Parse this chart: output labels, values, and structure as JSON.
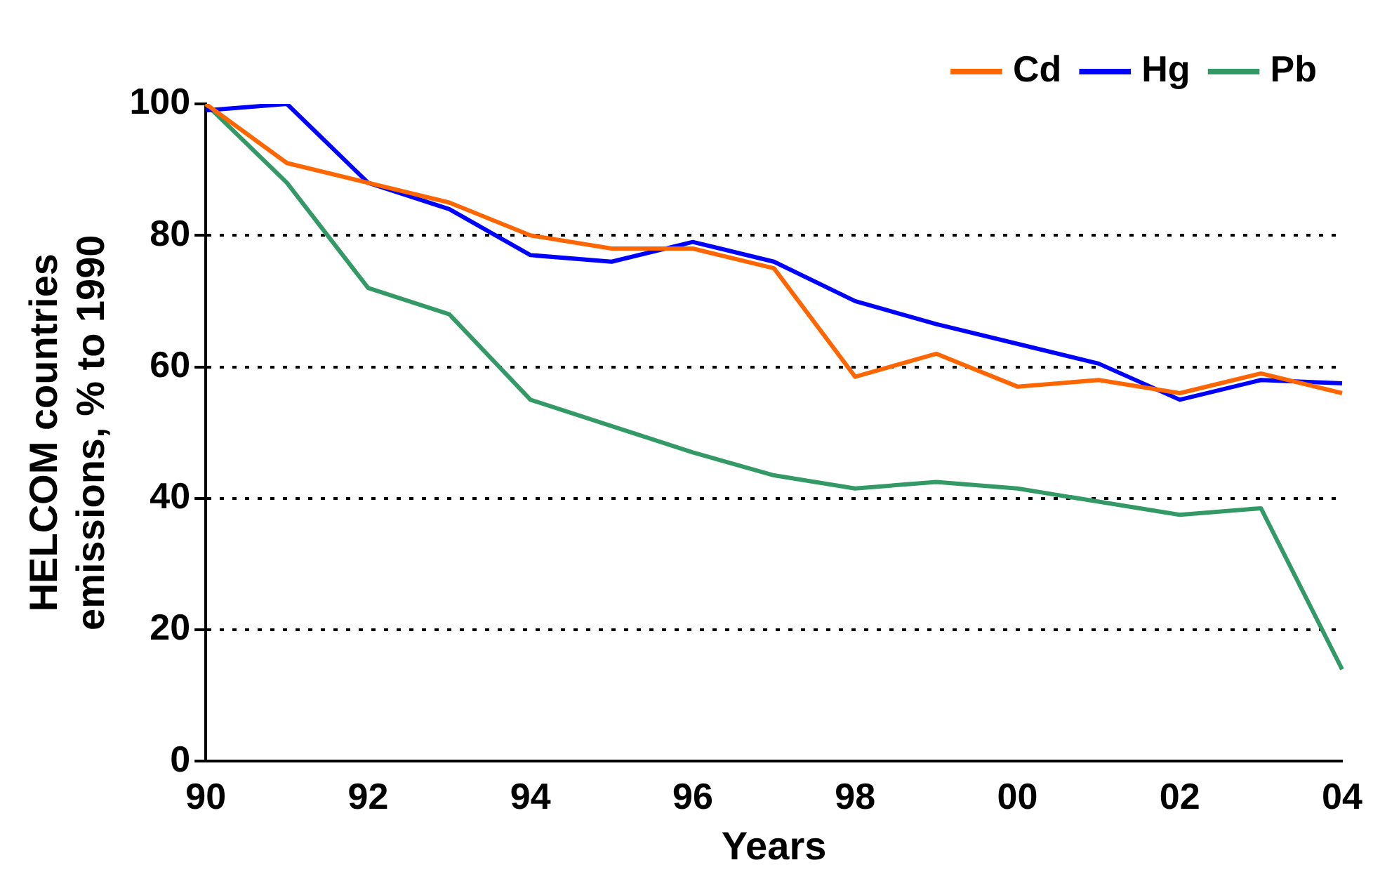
{
  "chart_data": {
    "type": "line",
    "xlabel": "Years",
    "ylabel": "HELCOM countries\nemissions, % to 1990",
    "categories": [
      "90",
      null,
      "92",
      null,
      "94",
      null,
      "96",
      null,
      "98",
      null,
      "00",
      null,
      "02",
      null,
      "04"
    ],
    "series": [
      {
        "name": "Cd",
        "color": "#ff6600",
        "values": [
          100,
          91,
          88,
          85,
          80,
          78,
          78,
          75,
          58.5,
          62,
          57,
          58,
          56,
          59,
          56
        ]
      },
      {
        "name": "Hg",
        "color": "#0000ff",
        "values": [
          99,
          100,
          88,
          84,
          77,
          76,
          79,
          76,
          70,
          66.5,
          63.5,
          60.5,
          55,
          58,
          57.5
        ]
      },
      {
        "name": "Pb",
        "color": "#339966",
        "values": [
          100,
          88,
          72,
          68,
          55,
          51,
          47,
          43.5,
          41.5,
          42.5,
          41.5,
          39.5,
          37.5,
          38.5,
          14
        ]
      }
    ],
    "ylim": [
      0,
      100
    ],
    "yticks": [
      0,
      20,
      40,
      60,
      80,
      100
    ],
    "grid": "y",
    "legend": "top right",
    "marker": "none",
    "line_style": "solid"
  }
}
